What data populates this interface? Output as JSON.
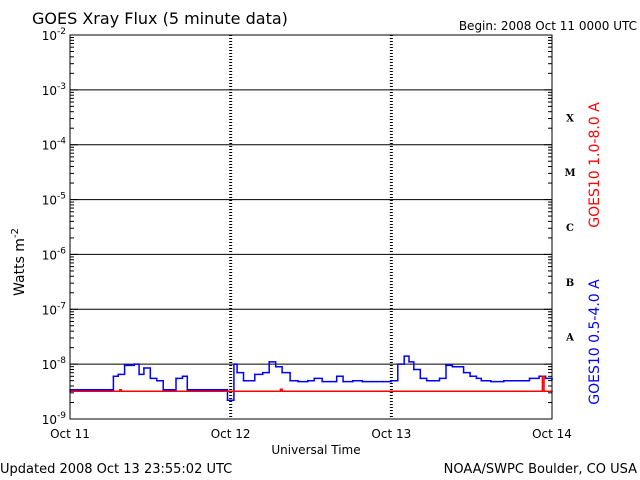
{
  "chart_data": {
    "type": "line",
    "title": "GOES Xray Flux (5 minute data)",
    "begin_label": "Begin:  2008 Oct 11 0000 UTC",
    "xlabel": "Universal Time",
    "ylabel_base": "Watts m",
    "ylabel_exp": "-2",
    "ylog": true,
    "y_ticks": [
      {
        "base": "10",
        "exp": "-2",
        "value": 0.01
      },
      {
        "base": "10",
        "exp": "-3",
        "value": 0.001
      },
      {
        "base": "10",
        "exp": "-4",
        "value": 0.0001
      },
      {
        "base": "10",
        "exp": "-5",
        "value": 1e-05
      },
      {
        "base": "10",
        "exp": "-6",
        "value": 1e-06
      },
      {
        "base": "10",
        "exp": "-7",
        "value": 1e-07
      },
      {
        "base": "10",
        "exp": "-8",
        "value": 1e-08
      },
      {
        "base": "10",
        "exp": "-9",
        "value": 1e-09
      }
    ],
    "ylim": [
      1e-09,
      0.01
    ],
    "xlim": [
      0,
      3
    ],
    "x_ticks": [
      {
        "label": "Oct 11",
        "value": 0
      },
      {
        "label": "Oct 12",
        "value": 1
      },
      {
        "label": "Oct 13",
        "value": 2
      },
      {
        "label": "Oct 14",
        "value": 3
      }
    ],
    "flare_classes": [
      {
        "label": "X",
        "value": 0.0001
      },
      {
        "label": "M",
        "value": 1e-05
      },
      {
        "label": "C",
        "value": 1e-06
      },
      {
        "label": "B",
        "value": 1e-07
      },
      {
        "label": "A",
        "value": 1e-08
      }
    ],
    "series": [
      {
        "name": "GOES10 0.5-4.0 A",
        "color": "#0000ff",
        "x": [
          0,
          0.25,
          0.27,
          0.3,
          0.34,
          0.4,
          0.43,
          0.46,
          0.5,
          0.54,
          0.58,
          0.63,
          0.66,
          0.7,
          0.73,
          0.78,
          0.85,
          0.97,
          0.98,
          1.0,
          1.02,
          1.04,
          1.08,
          1.15,
          1.2,
          1.24,
          1.28,
          1.32,
          1.37,
          1.42,
          1.48,
          1.52,
          1.57,
          1.62,
          1.66,
          1.7,
          1.76,
          1.82,
          1.88,
          1.95,
          2.0,
          2.04,
          2.08,
          2.11,
          2.14,
          2.18,
          2.22,
          2.26,
          2.3,
          2.34,
          2.38,
          2.45,
          2.49,
          2.53,
          2.56,
          2.62,
          2.7,
          2.8,
          2.86,
          2.92,
          2.96,
          3.0
        ],
        "values": [
          3.4e-09,
          3.4e-09,
          6e-09,
          6.5e-09,
          9.5e-09,
          1e-08,
          6.5e-09,
          8.5e-09,
          5.5e-09,
          5e-09,
          3.4e-09,
          3.4e-09,
          5.5e-09,
          6e-09,
          3.4e-09,
          3.4e-09,
          3.4e-09,
          3.4e-09,
          2.2e-09,
          2.2e-09,
          1e-08,
          7e-09,
          5e-09,
          6.5e-09,
          7e-09,
          1.1e-08,
          9e-09,
          7e-09,
          5e-09,
          4.8e-09,
          5e-09,
          5.5e-09,
          4.8e-09,
          4.8e-09,
          6e-09,
          4.8e-09,
          5e-09,
          4.8e-09,
          4.8e-09,
          4.8e-09,
          5e-09,
          1e-08,
          1.4e-08,
          1.1e-08,
          8e-09,
          5.5e-09,
          5e-09,
          5e-09,
          5.5e-09,
          9.5e-09,
          9e-09,
          7e-09,
          6e-09,
          5.5e-09,
          5e-09,
          4.8e-09,
          5e-09,
          5e-09,
          5.5e-09,
          6e-09,
          5.5e-09,
          5.2e-09
        ]
      },
      {
        "name": "GOES10 1.0-8.0 A",
        "color": "#ff0000",
        "x": [
          0,
          0.3,
          0.31,
          0.32,
          1.3,
          1.31,
          1.32,
          2.9,
          2.93,
          2.94,
          2.95,
          3.0
        ],
        "values": [
          3.2e-09,
          3.2e-09,
          3.4e-09,
          3.2e-09,
          3.2e-09,
          3.5e-09,
          3.2e-09,
          3.2e-09,
          3.2e-09,
          6e-09,
          3.2e-09,
          3.2e-09
        ]
      }
    ]
  },
  "footer": {
    "updated": "Updated 2008 Oct 13 23:55:02 UTC",
    "source": "NOAA/SWPC Boulder, CO USA"
  }
}
